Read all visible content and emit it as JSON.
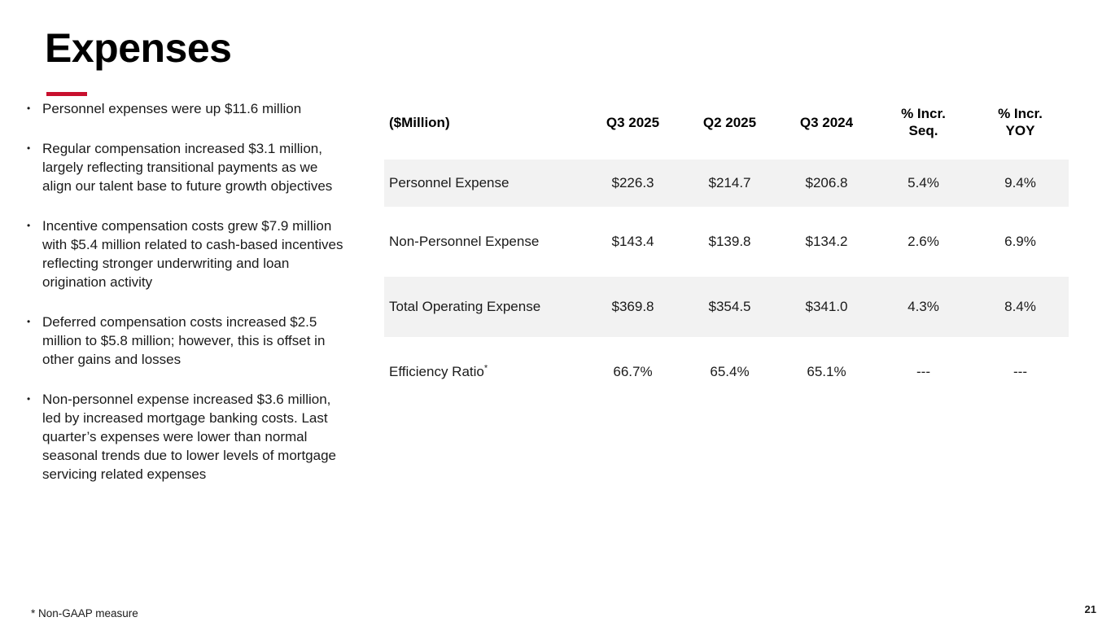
{
  "slide": {
    "title": "Expenses",
    "page_number": "21",
    "footnote": "*   Non-GAAP measure",
    "accent_color": "#C8102E",
    "bullet_char": "•"
  },
  "bullets": [
    "Personnel expenses were up $11.6 million",
    "Regular compensation increased $3.1 million, largely reflecting transitional payments as we align our talent base to future growth objectives",
    "Incentive compensation costs grew $7.9 million with $5.4 million related to cash-based incentives reflecting stronger underwriting and loan origination activity",
    "Deferred compensation costs increased $2.5 million to $5.8 million; however, this is offset in other gains and losses",
    "Non-personnel expense increased $3.6 million, led by increased mortgage banking costs. Last quarter’s expenses were lower than normal seasonal trends due to lower levels of mortgage servicing related expenses"
  ],
  "table": {
    "unit_label": "($Million)",
    "columns": [
      "Q3 2025",
      "Q2 2025",
      "Q3 2024",
      "% Incr.\nSeq.",
      "% Incr.\nYOY"
    ],
    "rows": [
      {
        "label": "Personnel Expense",
        "marker": "",
        "shaded": true,
        "values": [
          "$226.3",
          "$214.7",
          "$206.8",
          "5.4%",
          "9.4%"
        ]
      },
      {
        "label": "Non-Personnel Expense",
        "marker": "",
        "shaded": false,
        "values": [
          "$143.4",
          "$139.8",
          "$134.2",
          "2.6%",
          "6.9%"
        ]
      },
      {
        "label": "Total Operating Expense",
        "marker": "",
        "shaded": true,
        "values": [
          "$369.8",
          "$354.5",
          "$341.0",
          "4.3%",
          "8.4%"
        ]
      },
      {
        "label": "Efficiency Ratio",
        "marker": "*",
        "shaded": false,
        "values": [
          "66.7%",
          "65.4%",
          "65.1%",
          "---",
          "---"
        ]
      }
    ]
  }
}
